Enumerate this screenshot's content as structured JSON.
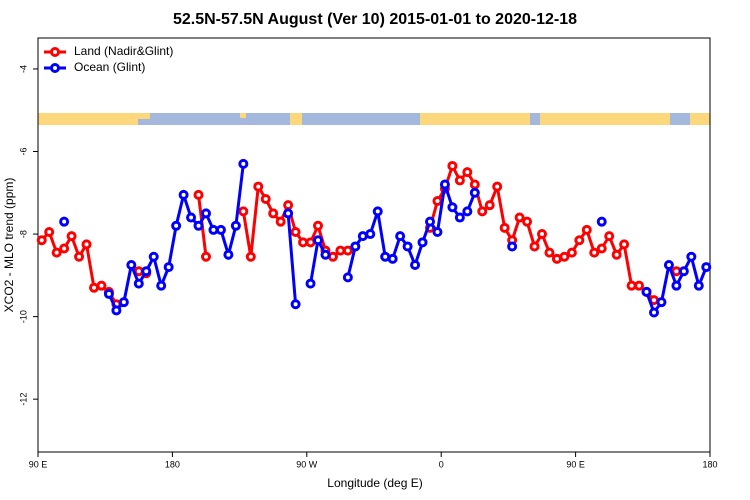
{
  "chart_data": {
    "type": "line",
    "title": "52.5N-57.5N August (Ver 10)   2015-01-01 to 2020-12-18",
    "xlabel": "Longitude (deg E)",
    "ylabel": "XCO2 - MLO trend (ppm)",
    "x": [
      92.5,
      97.5,
      102.5,
      107.5,
      112.5,
      117.5,
      122.5,
      127.5,
      132.5,
      137.5,
      142.5,
      147.5,
      152.5,
      157.5,
      162.5,
      167.5,
      172.5,
      177.5,
      182.5,
      187.5,
      192.5,
      197.5,
      202.5,
      207.5,
      212.5,
      217.5,
      222.5,
      227.5,
      232.5,
      237.5,
      242.5,
      247.5,
      252.5,
      257.5,
      262.5,
      267.5,
      272.5,
      277.5,
      282.5,
      287.5,
      292.5,
      297.5,
      302.5,
      307.5,
      312.5,
      317.5,
      322.5,
      327.5,
      332.5,
      337.5,
      342.5,
      347.5,
      352.5,
      357.5,
      362.5,
      367.5,
      372.5,
      377.5,
      382.5,
      387.5,
      392.5,
      397.5,
      402.5,
      407.5,
      412.5,
      417.5,
      422.5,
      427.5,
      432.5,
      437.5,
      442.5,
      447.5,
      452.5,
      457.5,
      462.5,
      467.5,
      472.5,
      477.5,
      482.5,
      487.5,
      492.5,
      497.5,
      502.5,
      507.5,
      512.5,
      517.5,
      522.5,
      527.5,
      532.5,
      537.5
    ],
    "series": [
      {
        "name": "Land (Nadir&Glint)",
        "color": "#ff0000",
        "values": [
          -8.15,
          -7.95,
          -8.45,
          -8.35,
          -8.05,
          -8.55,
          -8.25,
          -9.3,
          -9.25,
          -9.4,
          -9.7,
          null,
          null,
          -8.9,
          -8.95,
          null,
          null,
          null,
          null,
          null,
          null,
          -7.05,
          -8.55,
          null,
          null,
          null,
          null,
          -7.45,
          -8.55,
          -6.85,
          -7.15,
          -7.5,
          -7.7,
          -7.3,
          -7.95,
          -8.2,
          -8.2,
          -7.8,
          -8.4,
          -8.55,
          -8.4,
          -8.4,
          null,
          null,
          null,
          null,
          null,
          null,
          null,
          null,
          null,
          null,
          -7.85,
          -7.2,
          -6.9,
          -6.35,
          -6.7,
          -6.5,
          -6.8,
          -7.45,
          -7.3,
          -6.85,
          -7.85,
          -8.15,
          -7.6,
          -7.7,
          -8.3,
          -8.0,
          -8.45,
          -8.6,
          -8.55,
          -8.45,
          -8.15,
          -7.9,
          -8.45,
          -8.35,
          -8.05,
          -8.5,
          -8.25,
          -9.25,
          -9.25,
          -9.4,
          -9.6,
          null,
          null,
          -8.9,
          null,
          null,
          null,
          null
        ]
      },
      {
        "name": "Ocean (Glint)",
        "color": "#0000ff",
        "values": [
          null,
          null,
          null,
          -7.7,
          null,
          null,
          null,
          null,
          null,
          -9.45,
          -9.85,
          -9.65,
          -8.75,
          -9.2,
          -8.9,
          -8.55,
          -9.25,
          -8.8,
          -7.8,
          -7.05,
          -7.6,
          -7.8,
          -7.5,
          -7.9,
          -7.9,
          -8.5,
          -7.8,
          -6.3,
          null,
          null,
          null,
          null,
          null,
          -7.5,
          -9.7,
          null,
          -9.2,
          -8.15,
          -8.5,
          null,
          null,
          -9.05,
          -8.3,
          -8.05,
          -8.0,
          -7.45,
          -8.55,
          -8.6,
          -8.05,
          -8.3,
          -8.75,
          -8.2,
          -7.7,
          -7.95,
          -6.8,
          -7.35,
          -7.6,
          -7.45,
          -7.0,
          null,
          null,
          null,
          null,
          -8.3,
          null,
          null,
          null,
          null,
          null,
          null,
          null,
          null,
          null,
          null,
          null,
          -7.7,
          null,
          null,
          null,
          null,
          null,
          -9.4,
          -9.9,
          -9.65,
          -8.75,
          -9.25,
          -8.9,
          -8.55,
          -9.25,
          -8.8
        ]
      }
    ],
    "xlim": [
      90,
      540
    ],
    "xticks": [
      {
        "value": 90,
        "label": "90 E"
      },
      180,
      {
        "value": 270,
        "label": "90 W"
      },
      {
        "value": 360,
        "label": "0"
      },
      {
        "value": 450,
        "label": "90 E"
      },
      {
        "value": 540,
        "label": "180"
      }
    ],
    "ylim": [
      -13.28,
      -3.25
    ],
    "yticks": [
      -12,
      -10,
      -8,
      -6,
      -4
    ],
    "legend": "top-left"
  }
}
